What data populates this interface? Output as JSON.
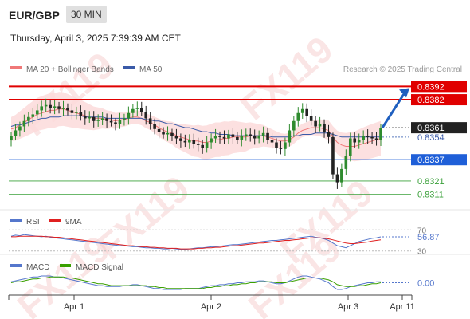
{
  "header": {
    "symbol": "EUR/GBP",
    "timeframe": "30 MIN",
    "datetime": "Thursday, April 3, 2025 7:39:39 AM CET"
  },
  "legend": {
    "items": [
      {
        "label": "MA 20 + Bollinger Bands",
        "color": "#f07878"
      },
      {
        "label": "MA 50",
        "color": "#3a5aa8"
      }
    ],
    "credit": "Research © 2025 Trading Central"
  },
  "colors": {
    "resistance": "#e00000",
    "support_blue": "#1f5fd8",
    "support_green": "#3aa03a",
    "candle_up": "#2e8b2e",
    "candle_down": "#222222",
    "rsi": "#5577cc",
    "rsi_ma": "#e02020",
    "macd": "#5577cc",
    "macd_signal": "#3aa000",
    "arrow": "#1f5fbf",
    "watermark": "#f4c6c6"
  },
  "watermark": "FX119",
  "chart_data": [
    {
      "type": "candlestick",
      "panel": "price",
      "ylim": [
        0.83,
        0.84
      ],
      "x_ticks": [
        "Apr 1",
        "Apr 2",
        "Apr 3",
        "Apr 11"
      ],
      "levels": [
        {
          "value": 0.8392,
          "label": "0.8392",
          "style": "resistance"
        },
        {
          "value": 0.8382,
          "label": "0.8382",
          "style": "resistance"
        },
        {
          "value": 0.8361,
          "label": "0.8361",
          "style": "last"
        },
        {
          "value": 0.8354,
          "label": "0.8354",
          "style": "ma"
        },
        {
          "value": 0.8337,
          "label": "0.8337",
          "style": "support_blue"
        },
        {
          "value": 0.8321,
          "label": "0.8321",
          "style": "support_green"
        },
        {
          "value": 0.8311,
          "label": "0.8311",
          "style": "support_green"
        }
      ],
      "closes": [
        0.8355,
        0.8359,
        0.8362,
        0.8366,
        0.8369,
        0.8371,
        0.8374,
        0.8377,
        0.8378,
        0.8376,
        0.8377,
        0.8375,
        0.8376,
        0.8374,
        0.8372,
        0.8373,
        0.837,
        0.8368,
        0.8369,
        0.8366,
        0.8367,
        0.8368,
        0.8366,
        0.8365,
        0.8364,
        0.8367,
        0.8368,
        0.8372,
        0.8375,
        0.8376,
        0.8373,
        0.8368,
        0.8364,
        0.836,
        0.8358,
        0.8356,
        0.8357,
        0.8355,
        0.8353,
        0.8351,
        0.835,
        0.8352,
        0.8349,
        0.8348,
        0.8346,
        0.835,
        0.8353,
        0.8355,
        0.8354,
        0.8353,
        0.8356,
        0.8354,
        0.8352,
        0.8355,
        0.8356,
        0.8355,
        0.8353,
        0.8355,
        0.8357,
        0.8352,
        0.835,
        0.8346,
        0.8345,
        0.835,
        0.8359,
        0.8366,
        0.8372,
        0.8375,
        0.837,
        0.8366,
        0.8362,
        0.8364,
        0.8358,
        0.8354,
        0.8326,
        0.832,
        0.833,
        0.834,
        0.8353,
        0.835,
        0.8352,
        0.8355,
        0.8354,
        0.8353,
        0.8352,
        0.8361
      ],
      "series": [
        {
          "name": "MA 20 + Bollinger Bands",
          "values": [
            0.836,
            0.8361,
            0.8363,
            0.8365,
            0.8367,
            0.8369,
            0.8371,
            0.8372,
            0.8373,
            0.8374,
            0.8374,
            0.8375,
            0.8375,
            0.8374,
            0.8373,
            0.8372,
            0.8371,
            0.837,
            0.8369,
            0.8368,
            0.8368,
            0.8368,
            0.8367,
            0.8367,
            0.8366,
            0.8367,
            0.8367,
            0.8368,
            0.8369,
            0.8369,
            0.8368,
            0.8366,
            0.8365,
            0.8363,
            0.8361,
            0.8359,
            0.8358,
            0.8357,
            0.8355,
            0.8354,
            0.8353,
            0.8352,
            0.8351,
            0.8351,
            0.835,
            0.835,
            0.8351,
            0.8352,
            0.8352,
            0.8353,
            0.8353,
            0.8354,
            0.8354,
            0.8354,
            0.8354,
            0.8355,
            0.8355,
            0.8355,
            0.8355,
            0.8354,
            0.8353,
            0.8352,
            0.8351,
            0.8351,
            0.8352,
            0.8354,
            0.8357,
            0.8359,
            0.836,
            0.8361,
            0.8361,
            0.8361,
            0.836,
            0.8359,
            0.8354,
            0.835,
            0.8348,
            0.8347,
            0.8347,
            0.8347,
            0.8348,
            0.8349,
            0.835,
            0.8351,
            0.8352,
            0.8353
          ]
        },
        {
          "name": "MA 50",
          "values": [
            0.8362,
            0.8363,
            0.8363,
            0.8364,
            0.8365,
            0.8366,
            0.8367,
            0.8368,
            0.8368,
            0.8369,
            0.8369,
            0.8369,
            0.837,
            0.837,
            0.837,
            0.837,
            0.837,
            0.8369,
            0.8369,
            0.8369,
            0.8369,
            0.8369,
            0.8368,
            0.8368,
            0.8368,
            0.8368,
            0.8368,
            0.8368,
            0.8368,
            0.8368,
            0.8368,
            0.8367,
            0.8367,
            0.8366,
            0.8366,
            0.8365,
            0.8364,
            0.8364,
            0.8363,
            0.8362,
            0.8361,
            0.8361,
            0.836,
            0.8359,
            0.8358,
            0.8358,
            0.8357,
            0.8357,
            0.8356,
            0.8356,
            0.8356,
            0.8355,
            0.8355,
            0.8355,
            0.8355,
            0.8355,
            0.8355,
            0.8355,
            0.8355,
            0.8355,
            0.8354,
            0.8354,
            0.8354,
            0.8354,
            0.8354,
            0.8355,
            0.8355,
            0.8356,
            0.8356,
            0.8356,
            0.8357,
            0.8357,
            0.8357,
            0.8357,
            0.8356,
            0.8355,
            0.8354,
            0.8354,
            0.8354,
            0.8354,
            0.8354,
            0.8354,
            0.8354,
            0.8354,
            0.8354,
            0.8354
          ]
        }
      ],
      "projection": {
        "from": 0.8361,
        "to": 0.8392
      }
    },
    {
      "type": "line",
      "panel": "rsi",
      "ylim": [
        25,
        75
      ],
      "levels": [
        70,
        30
      ],
      "level_labels": [
        "70",
        "30"
      ],
      "last_label": "56.87",
      "series": [
        {
          "name": "RSI",
          "values": [
            58,
            60,
            59,
            61,
            60,
            59,
            58,
            57,
            58,
            56,
            55,
            54,
            53,
            52,
            51,
            50,
            49,
            48,
            47,
            46,
            45,
            44,
            43,
            42,
            41,
            40,
            40,
            39,
            38,
            38,
            37,
            36,
            36,
            35,
            35,
            34,
            34,
            35,
            34,
            33,
            33,
            34,
            35,
            36,
            36,
            37,
            38,
            38,
            39,
            40,
            41,
            42,
            42,
            43,
            44,
            45,
            46,
            47,
            48,
            49,
            50,
            50,
            51,
            52,
            53,
            54,
            55,
            56,
            57,
            58,
            56,
            55,
            53,
            50,
            45,
            40,
            38,
            36,
            40,
            44,
            48,
            50,
            52,
            54,
            55,
            56.87
          ]
        },
        {
          "name": "9MA",
          "values": [
            57,
            57,
            58,
            58,
            58,
            58,
            58,
            58,
            57,
            57,
            56,
            56,
            55,
            54,
            53,
            52,
            51,
            50,
            49,
            48,
            47,
            46,
            45,
            44,
            43,
            42,
            41,
            40,
            40,
            39,
            38,
            38,
            37,
            37,
            36,
            36,
            35,
            35,
            35,
            34,
            34,
            34,
            34,
            35,
            35,
            36,
            36,
            37,
            37,
            38,
            39,
            40,
            40,
            41,
            42,
            43,
            44,
            45,
            45,
            46,
            47,
            48,
            49,
            50,
            50,
            51,
            52,
            53,
            54,
            55,
            55,
            55,
            54,
            53,
            51,
            49,
            47,
            45,
            44,
            44,
            45,
            46,
            47,
            49,
            50,
            51
          ]
        }
      ]
    },
    {
      "type": "line",
      "panel": "macd",
      "ylim": [
        -0.0012,
        0.0012
      ],
      "last_label": "0.00",
      "series": [
        {
          "name": "MACD",
          "values": [
            0.0001,
            0.0002,
            0.0003,
            0.0004,
            0.0005,
            0.0006,
            0.0006,
            0.0007,
            0.0007,
            0.0007,
            0.0006,
            0.0006,
            0.0005,
            0.0004,
            0.0003,
            0.0002,
            0.0001,
            0.0,
            -0.0001,
            -0.0002,
            -0.0003,
            -0.0003,
            -0.0004,
            -0.0004,
            -0.0004,
            -0.0004,
            -0.0003,
            -0.0003,
            -0.0002,
            -0.0002,
            -0.0003,
            -0.0004,
            -0.0005,
            -0.0006,
            -0.0006,
            -0.0007,
            -0.0007,
            -0.0007,
            -0.0007,
            -0.0007,
            -0.0006,
            -0.0006,
            -0.0006,
            -0.0006,
            -0.0005,
            -0.0004,
            -0.0003,
            -0.0003,
            -0.0002,
            -0.0002,
            -0.0001,
            -0.0001,
            0.0,
            0.0,
            0.0001,
            0.0001,
            0.0001,
            0.0002,
            0.0002,
            0.0001,
            0.0,
            -0.0001,
            -0.0001,
            0.0,
            0.0002,
            0.0004,
            0.0006,
            0.0007,
            0.0007,
            0.0006,
            0.0005,
            0.0004,
            0.0002,
            0.0,
            -0.0004,
            -0.0007,
            -0.0007,
            -0.0006,
            -0.0004,
            -0.0003,
            -0.0002,
            -0.0001,
            0.0,
            0.0,
            0.0001,
            0.0001
          ]
        },
        {
          "name": "MACD Signal",
          "values": [
            0.0,
            0.0001,
            0.0001,
            0.0002,
            0.0003,
            0.0004,
            0.0004,
            0.0005,
            0.0005,
            0.0006,
            0.0006,
            0.0006,
            0.0006,
            0.0005,
            0.0005,
            0.0004,
            0.0003,
            0.0002,
            0.0001,
            0.0,
            -0.0001,
            -0.0001,
            -0.0002,
            -0.0003,
            -0.0003,
            -0.0003,
            -0.0003,
            -0.0003,
            -0.0003,
            -0.0003,
            -0.0003,
            -0.0003,
            -0.0004,
            -0.0004,
            -0.0005,
            -0.0005,
            -0.0006,
            -0.0006,
            -0.0006,
            -0.0006,
            -0.0006,
            -0.0006,
            -0.0006,
            -0.0006,
            -0.0006,
            -0.0005,
            -0.0005,
            -0.0004,
            -0.0004,
            -0.0003,
            -0.0003,
            -0.0002,
            -0.0002,
            -0.0001,
            -0.0001,
            0.0,
            0.0,
            0.0001,
            0.0001,
            0.0001,
            0.0001,
            0.0,
            0.0,
            0.0,
            0.0001,
            0.0002,
            0.0003,
            0.0004,
            0.0005,
            0.0005,
            0.0005,
            0.0005,
            0.0004,
            0.0003,
            0.0001,
            -0.0002,
            -0.0003,
            -0.0004,
            -0.0004,
            -0.0004,
            -0.0003,
            -0.0003,
            -0.0002,
            -0.0001,
            -0.0001,
            0.0
          ]
        }
      ]
    }
  ]
}
